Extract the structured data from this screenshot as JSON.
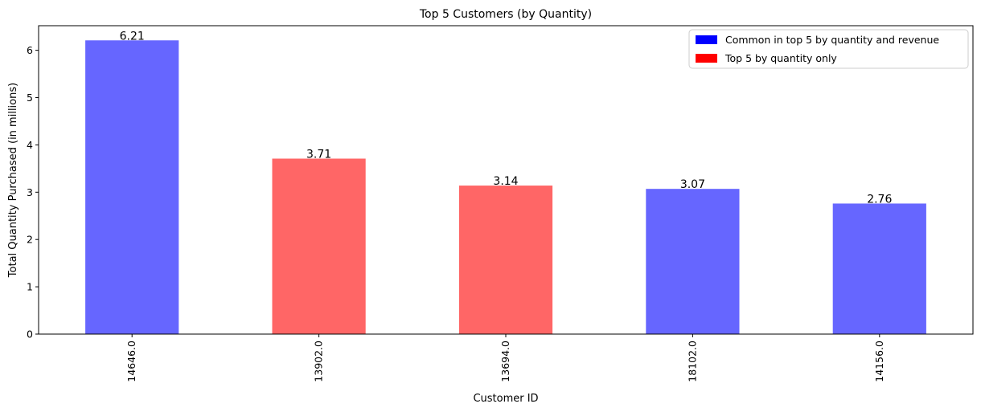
{
  "chart_data": {
    "type": "bar",
    "title": "Top 5 Customers (by Quantity)",
    "xlabel": "Customer ID",
    "ylabel": "Total Quantity Purchased (in millions)",
    "categories": [
      "14646.0",
      "13902.0",
      "13694.0",
      "18102.0",
      "14156.0"
    ],
    "values": [
      6.21,
      3.71,
      3.14,
      3.07,
      2.76
    ],
    "data_labels": [
      "6.21",
      "3.71",
      "3.14",
      "3.07",
      "2.76"
    ],
    "groups": [
      "common",
      "quantity_only",
      "quantity_only",
      "common",
      "common"
    ],
    "ylim": [
      0,
      6.52
    ],
    "yticks": [
      "0",
      "1",
      "2",
      "3",
      "4",
      "5",
      "6"
    ],
    "grid": false,
    "legend_position": "top-right",
    "legend": [
      {
        "key": "common",
        "label": "Common in top 5 by quantity and revenue",
        "color": "#0000ff"
      },
      {
        "key": "quantity_only",
        "label": "Top 5 by quantity only",
        "color": "#ff0000"
      }
    ],
    "bar_colors": {
      "common": "#6666ff",
      "quantity_only": "#ff6666"
    }
  }
}
